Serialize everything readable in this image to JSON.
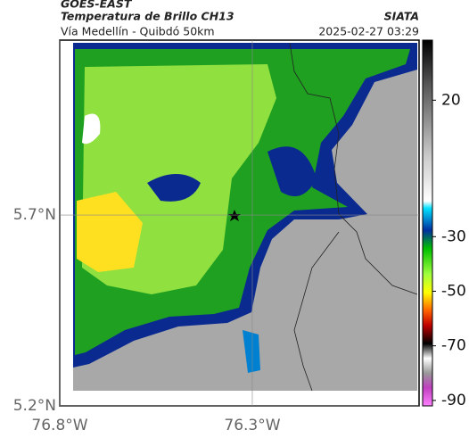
{
  "header": {
    "source": "GOES-EAST",
    "product": "Temperatura de Brillo CH13",
    "agency": "SIATA",
    "route": "Vía Medellín - Quibdó 50km",
    "timestamp": "2025-02-27 03:29"
  },
  "map": {
    "latlim": [
      5.2,
      6.158
    ],
    "lonlim": [
      -76.8,
      -75.867
    ],
    "latticks": [
      {
        "value": 5.7,
        "label": "5.7°N"
      },
      {
        "value": 5.2,
        "label": "5.2°N"
      }
    ],
    "lonticks": [
      {
        "value": -76.8,
        "label": "76.8°W"
      },
      {
        "value": -76.3,
        "label": "76.3°W"
      }
    ]
  },
  "colorbar": {
    "lim": [
      -92,
      42
    ],
    "ticks": [
      20,
      -30,
      -50,
      -70,
      -90
    ]
  }
}
